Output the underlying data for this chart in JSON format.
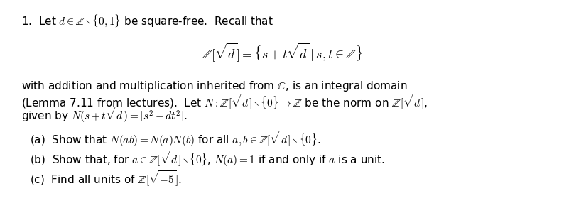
{
  "background_color": "#ffffff",
  "fig_width": 7.94,
  "fig_height": 3.0,
  "dpi": 100,
  "text_color": "#000000",
  "fs": 11.0,
  "line1": "1.  Let $d \\in \\mathbb{Z} \\setminus \\{0,1\\}$ be square-free.  Recall that",
  "eq": "$\\mathbb{Z}[\\sqrt{d}] = \\{s + t\\sqrt{d}\\mid s, t \\in \\mathbb{Z}\\}$",
  "body_l1": "with addition and multiplication inherited from $\\mathbb{C}$, is an integral domain",
  "body_l2": "(Lemma 7.11 from lectures).  Let $N : \\mathbb{Z}[\\sqrt{d}] \\setminus \\{0\\} \\to \\mathbb{Z}$ be the norm on $\\mathbb{Z}[\\sqrt{d}]$,",
  "body_l3": "given by $N(s + t\\sqrt{d}) = |s^2 - dt^2|$.",
  "part_a": "(a)  Show that $N(ab) = N(a)N(b)$ for all $a, b \\in \\mathbb{Z}[\\sqrt{d}] \\setminus \\{0\\}$.",
  "part_b": "(b)  Show that, for $a \\in \\mathbb{Z}[\\sqrt{d}] \\setminus \\{0\\}$, $N(a) = 1$ if and only if $a$ is a unit.",
  "part_c": "(c)  Find all units of $\\mathbb{Z}[\\sqrt{-5}]$."
}
